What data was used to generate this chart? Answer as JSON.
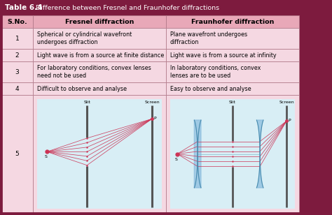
{
  "title_bold": "Table 6.4",
  "title_rest": "  Difference between Fresnel and Fraunhofer diffractions",
  "header_bg": "#7d1b3e",
  "subheader_bg": "#e8a8b8",
  "row_bg": "#f5d8e2",
  "border_color": "#b07888",
  "diagram_bg": "#d8eef5",
  "col_headers": [
    "S.No.",
    "Fresnel diffraction",
    "Fraunhofer diffraction"
  ],
  "rows": [
    {
      "no": "1",
      "fresnel": "Spherical or cylindrical wavefront\nundergoes diffraction",
      "fraunhofer": "Plane wavefront undergoes\ndiffraction"
    },
    {
      "no": "2",
      "fresnel": "Light wave is from a source at finite distance",
      "fraunhofer": "Light wave is from a source at infinity"
    },
    {
      "no": "3",
      "fresnel": "For laboratory conditions, convex lenses\nneed not be used",
      "fraunhofer": "In laboratory conditions, convex\nlenses are to be used"
    },
    {
      "no": "4",
      "fresnel": "Difficult to observe and analyse",
      "fraunhofer": "Easy to observe and analyse"
    }
  ],
  "line_color": "#cc3355",
  "slit_color": "#555555",
  "lens_color": "#88bbdd",
  "source_color": "#cc3355",
  "screen_color": "#555555"
}
